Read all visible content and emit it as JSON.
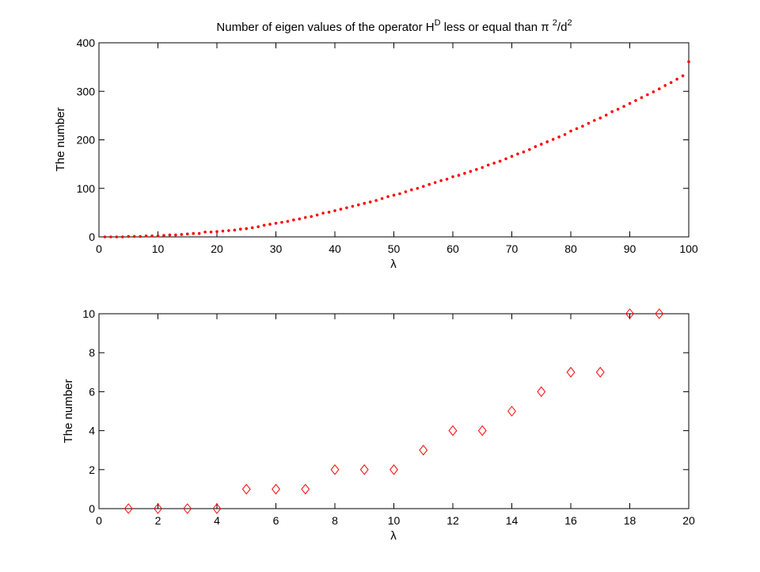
{
  "chart_data": [
    {
      "type": "scatter",
      "title": {
        "prefix": "Number of eigen values of the operator H",
        "sup1": "D",
        "middle": " less or equal than π ",
        "sup2": "2",
        "mid2": "/d",
        "sup3": "2"
      },
      "xlabel": "λ",
      "ylabel": "The number",
      "xlim": [
        0,
        100
      ],
      "ylim": [
        0,
        400
      ],
      "xticks": [
        "0",
        "10",
        "20",
        "30",
        "40",
        "50",
        "60",
        "70",
        "80",
        "90",
        "100"
      ],
      "yticks": [
        "0",
        "100",
        "200",
        "300",
        "400"
      ],
      "grid": false,
      "marker": "dot",
      "color": "#ff0000",
      "x": [
        1,
        2,
        3,
        4,
        5,
        6,
        7,
        8,
        9,
        10,
        11,
        12,
        13,
        14,
        15,
        16,
        17,
        18,
        19,
        20,
        21,
        22,
        23,
        24,
        25,
        26,
        27,
        28,
        29,
        30,
        31,
        32,
        33,
        34,
        35,
        36,
        37,
        38,
        39,
        40,
        41,
        42,
        43,
        44,
        45,
        46,
        47,
        48,
        49,
        50,
        51,
        52,
        53,
        54,
        55,
        56,
        57,
        58,
        59,
        60,
        61,
        62,
        63,
        64,
        65,
        66,
        67,
        68,
        69,
        70,
        71,
        72,
        73,
        74,
        75,
        76,
        77,
        78,
        79,
        80,
        81,
        82,
        83,
        84,
        85,
        86,
        87,
        88,
        89,
        90,
        91,
        92,
        93,
        94,
        95,
        96,
        97,
        98,
        99,
        100
      ],
      "y": [
        0,
        0,
        0,
        0,
        1,
        1,
        1,
        2,
        2,
        2,
        3,
        4,
        4,
        5,
        6,
        7,
        7,
        10,
        10,
        11,
        12,
        13,
        14,
        16,
        17,
        19,
        21,
        24,
        26,
        28,
        30,
        32,
        35,
        37,
        40,
        42,
        45,
        49,
        51,
        54,
        57,
        60,
        63,
        66,
        69,
        72,
        75,
        79,
        83,
        86,
        89,
        93,
        97,
        100,
        104,
        108,
        112,
        116,
        119,
        124,
        127,
        131,
        135,
        139,
        143,
        148,
        152,
        156,
        161,
        166,
        171,
        175,
        180,
        186,
        191,
        196,
        201,
        206,
        211,
        218,
        223,
        228,
        234,
        240,
        245,
        251,
        258,
        263,
        269,
        275,
        281,
        287,
        293,
        299,
        305,
        312,
        318,
        325,
        332,
        361
      ]
    },
    {
      "type": "scatter",
      "xlabel": "λ",
      "ylabel": "The number",
      "xlim": [
        0,
        20
      ],
      "ylim": [
        0,
        10
      ],
      "xticks": [
        "0",
        "2",
        "4",
        "6",
        "8",
        "10",
        "12",
        "14",
        "16",
        "18",
        "20"
      ],
      "yticks": [
        "0",
        "2",
        "4",
        "6",
        "8",
        "10"
      ],
      "grid": false,
      "marker": "diamond",
      "color": "#ff0000",
      "x": [
        1,
        2,
        3,
        4,
        5,
        6,
        7,
        8,
        9,
        10,
        11,
        12,
        13,
        14,
        15,
        16,
        17,
        18,
        19
      ],
      "y": [
        0,
        0,
        0,
        0,
        1,
        1,
        1,
        2,
        2,
        2,
        3,
        4,
        4,
        5,
        6,
        7,
        7,
        10,
        10
      ]
    }
  ]
}
